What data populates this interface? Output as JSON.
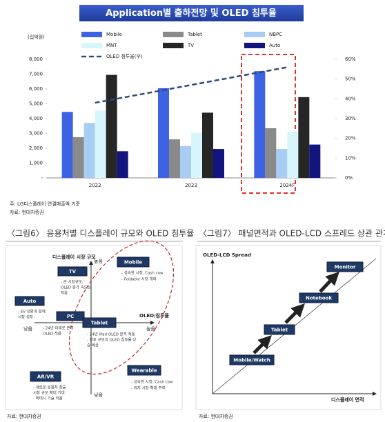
{
  "chart_data": {
    "type": "bar",
    "title": "Application별 출하전망 및 OLED 침투율",
    "unit": "(십억원)",
    "categories": [
      "2022",
      "2023",
      "2024F"
    ],
    "series": [
      {
        "name": "Mobile",
        "color": "#3d62e3",
        "values": [
          4450,
          6050,
          7200
        ]
      },
      {
        "name": "Tablet",
        "color": "#8a8a8a",
        "values": [
          2750,
          2600,
          3350
        ]
      },
      {
        "name": "NBPC",
        "color": "#a8cdf4",
        "values": [
          3700,
          2150,
          1950
        ]
      },
      {
        "name": "MNT",
        "color": "#d6f6fb",
        "values": [
          4550,
          3050,
          3100
        ]
      },
      {
        "name": "TV",
        "color": "#262626",
        "values": [
          6950,
          4400,
          5450
        ]
      },
      {
        "name": "Auto",
        "color": "#141480",
        "values": [
          1800,
          1950,
          2250
        ]
      },
      {
        "name": "OLED 침투율(우)",
        "color": "#2e4a7a",
        "axis": "y2",
        "style": "dashed",
        "values": [
          38,
          47,
          56
        ]
      }
    ],
    "ylim": [
      0,
      8000
    ],
    "yticks": [
      {
        "value": 0,
        "label": "-"
      },
      {
        "value": 1000,
        "label": "1,000"
      },
      {
        "value": 2000,
        "label": "2,000"
      },
      {
        "value": 3000,
        "label": "3,000"
      },
      {
        "value": 4000,
        "label": "4,000"
      },
      {
        "value": 5000,
        "label": "5,000"
      },
      {
        "value": 6000,
        "label": "6,000"
      },
      {
        "value": 7000,
        "label": "7,000"
      },
      {
        "value": 8000,
        "label": "8,000"
      }
    ],
    "y2lim": [
      0,
      60
    ],
    "y2ticks": [
      {
        "value": 0,
        "label": "0%"
      },
      {
        "value": 10,
        "label": "10%"
      },
      {
        "value": 20,
        "label": "20%"
      },
      {
        "value": 30,
        "label": "30%"
      },
      {
        "value": 40,
        "label": "40%"
      },
      {
        "value": 50,
        "label": "50%"
      },
      {
        "value": 60,
        "label": "60%"
      }
    ],
    "grid": false,
    "legend": "top",
    "notes": [
      "주: LG디스플레이 연결매출액 기준",
      "자료: 현대차증권"
    ]
  },
  "figure6": {
    "title": "〈그림6〉 응용처별 디스플레이 규모와 OLED 침투율",
    "y_axis_label": "디스플레이 시장 규모",
    "y_high": "높음",
    "y_low": "낮음",
    "x_axis_label": "OLED/침투율",
    "x_low": "낮음",
    "x_high": "높음",
    "nodes": [
      {
        "label": "Mobile",
        "notes": [
          "- 성숙한 시장, Cash cow",
          "- Foldable 시장 개화"
        ]
      },
      {
        "label": "TV",
        "notes": [
          "- 큰 시장규모,",
          "OLED 증가 속도는",
          "적음"
        ]
      },
      {
        "label": "Auto",
        "notes": [
          "- EV 전환과 함께",
          "시장 성장"
        ]
      },
      {
        "label": "PC",
        "notes": [
          "- 24년 이후로 본격",
          "OLED 적용"
        ]
      },
      {
        "label": "Tablet",
        "notes": [
          "- 24년 iPad OLED 본격 적용",
          "- 향후 규모의 OLED 침투율 상",
          "승 예상"
        ]
      },
      {
        "label": "Wearable",
        "notes": [
          "- 성숙한 시장, Cash cow",
          "- 워치 시장 확대 주력"
        ]
      },
      {
        "label": "AR/VR",
        "notes": [
          "- 새로운 응용처 창출",
          "시장 규모 확대 기대",
          "- 확대시 기술 적용"
        ]
      }
    ],
    "source": "자료: 현대차증권"
  },
  "figure7": {
    "title": "〈그림7〉 패널면적과 OLED-LCD 스프레드 상관 관계",
    "y_axis_label": "OLED-LCD Spread",
    "x_axis_label": "디스플레이 면적",
    "nodes": [
      {
        "label": "Mobile/Watch"
      },
      {
        "label": "Tablet"
      },
      {
        "label": "Notebook"
      },
      {
        "label": "Monitor"
      }
    ],
    "source": "자료: 현대차증권"
  }
}
